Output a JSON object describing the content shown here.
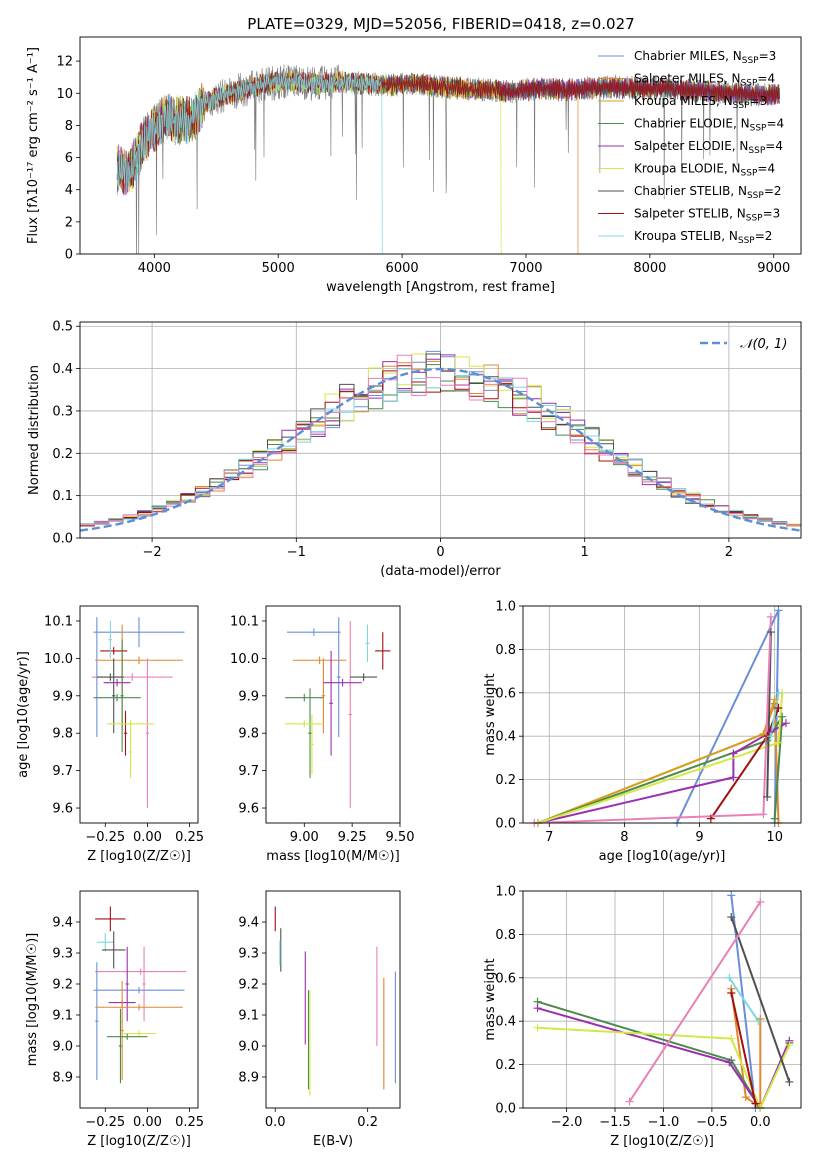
{
  "title": "PLATE=0329, MJD=52056, FIBERID=0418, z=0.027",
  "colors": {
    "chabrier_miles": "#6a8fd8",
    "salpeter_miles": "#e0882e",
    "kroupa_miles": "#d4a020",
    "chabrier_elodie": "#4b8a4b",
    "salpeter_elodie": "#9b2fb0",
    "kroupa_elodie": "#d4e84a",
    "chabrier_stelib": "#505050",
    "salpeter_stelib": "#a01010",
    "kroupa_stelib": "#7fd8e0",
    "pink": "#e880b8",
    "gray_spectrum": "#7a7a7a",
    "grid": "#b0b0b0",
    "gaussian": "#5b8fd6"
  },
  "chart_data": [
    {
      "type": "line",
      "name": "spectrum",
      "xlabel": "wavelength [Angstrom, rest frame]",
      "ylabel": "Flux [fλ10⁻¹⁷ erg cm⁻² s⁻¹ A⁻¹]",
      "xlim": [
        3400,
        9220
      ],
      "ylim": [
        0,
        13.5
      ],
      "xticks": [
        4000,
        5000,
        6000,
        7000,
        8000,
        9000
      ],
      "yticks": [
        0,
        2,
        4,
        6,
        8,
        10,
        12
      ],
      "legend_position": "top-right",
      "legend": [
        "Chabrier MILES, N_SSP=3",
        "Salpeter MILES, N_SSP=4",
        "Kroupa MILES, N_SSP=3",
        "Chabrier ELODIE, N_SSP=4",
        "Salpeter ELODIE, N_SSP=4",
        "Kroupa ELODIE, N_SSP=4",
        "Chabrier STELIB, N_SSP=2",
        "Salpeter STELIB, N_SSP=3",
        "Kroupa STELIB, N_SSP=2"
      ],
      "continuum_points": [
        [
          3700,
          5.3
        ],
        [
          3800,
          5.0
        ],
        [
          3900,
          6.8
        ],
        [
          4000,
          7.8
        ],
        [
          4100,
          8.5
        ],
        [
          4200,
          8.3
        ],
        [
          4300,
          8.4
        ],
        [
          4400,
          9.3
        ],
        [
          4500,
          9.7
        ],
        [
          4700,
          10.2
        ],
        [
          4900,
          10.6
        ],
        [
          5100,
          10.8
        ],
        [
          5300,
          10.6
        ],
        [
          5500,
          10.7
        ],
        [
          5700,
          10.6
        ],
        [
          5900,
          10.5
        ],
        [
          6100,
          10.6
        ],
        [
          6300,
          10.4
        ],
        [
          6500,
          10.3
        ],
        [
          6700,
          10.2
        ],
        [
          6900,
          10.1
        ],
        [
          7100,
          10.3
        ],
        [
          7300,
          10.2
        ],
        [
          7500,
          10.3
        ],
        [
          7700,
          10.4
        ],
        [
          7900,
          10.3
        ],
        [
          8100,
          10.3
        ],
        [
          8300,
          10.2
        ],
        [
          8500,
          10.1
        ],
        [
          8700,
          10.0
        ],
        [
          8900,
          9.9
        ],
        [
          9050,
          9.9
        ]
      ],
      "cutoffs": {
        "kroupa_elodie": 6800,
        "salpeter_miles": 7420,
        "kroupa_stelib": 5840
      }
    },
    {
      "type": "line",
      "name": "residual-distribution",
      "xlabel": "(data-model)/error",
      "ylabel": "Normed distribution",
      "xlim": [
        -2.5,
        2.5
      ],
      "ylim": [
        0,
        0.51
      ],
      "xticks": [
        -2,
        -1,
        0,
        1,
        2
      ],
      "yticks": [
        0.0,
        0.1,
        0.2,
        0.3,
        0.4,
        0.5
      ],
      "legend_position": "top-right",
      "legend": [
        "𝒩(0, 1)"
      ],
      "bin_width": 0.1
    },
    {
      "type": "scatter",
      "name": "age-vs-z",
      "xlabel": "Z [log10(Z/Z☉)]",
      "ylabel": "age  [log10(age/yr)]",
      "xlim": [
        -0.4,
        0.3
      ],
      "ylim": [
        9.56,
        10.14
      ],
      "xticks": [
        -0.25,
        0.0,
        0.25
      ],
      "yticks": [
        9.6,
        9.7,
        9.8,
        9.9,
        10.0,
        10.1
      ],
      "points": [
        {
          "c": "chabrier_miles",
          "x": -0.05,
          "xe": 0.27,
          "y": 10.07,
          "ye": 0.04
        },
        {
          "c": "chabrier_miles",
          "x": -0.3,
          "xe": 0.01,
          "y": 9.95,
          "ye": 0.16
        },
        {
          "c": "salpeter_miles",
          "x": -0.05,
          "xe": 0.26,
          "y": 9.995,
          "ye": 0.01
        },
        {
          "c": "salpeter_miles",
          "x": -0.15,
          "xe": 0.01,
          "y": 9.95,
          "ye": 0.14
        },
        {
          "c": "salpeter_stelib",
          "x": -0.2,
          "xe": 0.08,
          "y": 10.02,
          "ye": 0.01
        },
        {
          "c": "salpeter_stelib",
          "x": -0.13,
          "xe": 0.01,
          "y": 9.8,
          "ye": 0.06
        },
        {
          "c": "pink",
          "x": -0.09,
          "xe": 0.24,
          "y": 9.95,
          "ye": 0.01
        },
        {
          "c": "pink",
          "x": 0.0,
          "xe": 0.01,
          "y": 9.8,
          "ye": 0.2
        },
        {
          "c": "chabrier_stelib",
          "x": -0.22,
          "xe": 0.08,
          "y": 9.95,
          "ye": 0.01
        },
        {
          "c": "chabrier_stelib",
          "x": -0.2,
          "xe": 0.01,
          "y": 9.9,
          "ye": 0.1
        },
        {
          "c": "chabrier_elodie",
          "x": -0.18,
          "xe": 0.14,
          "y": 9.895,
          "ye": 0.01
        },
        {
          "c": "chabrier_elodie",
          "x": -0.15,
          "xe": 0.01,
          "y": 9.9,
          "ye": 0.15
        },
        {
          "c": "salpeter_elodie",
          "x": -0.18,
          "xe": 0.08,
          "y": 9.935,
          "ye": 0.01
        },
        {
          "c": "kroupa_elodie",
          "x": -0.1,
          "xe": 0.14,
          "y": 9.825,
          "ye": 0.01
        },
        {
          "c": "kroupa_elodie",
          "x": -0.1,
          "xe": 0.01,
          "y": 9.75,
          "ye": 0.07
        },
        {
          "c": "kroupa_stelib",
          "x": -0.22,
          "xe": 0.01,
          "y": 10.05,
          "ye": 0.05
        }
      ]
    },
    {
      "type": "scatter",
      "name": "age-vs-mass",
      "xlabel": "mass [log10(M/M☉)]",
      "ylabel": "",
      "xlim": [
        8.8,
        9.5
      ],
      "ylim": [
        9.56,
        10.14
      ],
      "xticks": [
        9.0,
        9.25,
        9.5
      ],
      "yticks": [
        9.6,
        9.7,
        9.8,
        9.9,
        10.0,
        10.1
      ],
      "points": [
        {
          "c": "chabrier_miles",
          "x": 9.05,
          "xe": 0.14,
          "y": 10.07,
          "ye": 0.01
        },
        {
          "c": "chabrier_miles",
          "x": 9.18,
          "xe": 0.01,
          "y": 9.95,
          "ye": 0.16
        },
        {
          "c": "salpeter_miles",
          "x": 9.08,
          "xe": 0.14,
          "y": 9.995,
          "ye": 0.01
        },
        {
          "c": "salpeter_miles",
          "x": 9.1,
          "xe": 0.01,
          "y": 9.9,
          "ye": 0.1
        },
        {
          "c": "salpeter_stelib",
          "x": 9.41,
          "xe": 0.04,
          "y": 10.02,
          "ye": 0.05
        },
        {
          "c": "pink",
          "x": 9.24,
          "xe": 0.01,
          "y": 9.85,
          "ye": 0.25
        },
        {
          "c": "chabrier_stelib",
          "x": 9.31,
          "xe": 0.07,
          "y": 9.95,
          "ye": 0.01
        },
        {
          "c": "chabrier_elodie",
          "x": 9.0,
          "xe": 0.1,
          "y": 9.895,
          "ye": 0.01
        },
        {
          "c": "chabrier_elodie",
          "x": 9.03,
          "xe": 0.01,
          "y": 9.8,
          "ye": 0.12
        },
        {
          "c": "salpeter_elodie",
          "x": 9.14,
          "xe": 0.01,
          "y": 9.88,
          "ye": 0.14
        },
        {
          "c": "salpeter_elodie",
          "x": 9.2,
          "xe": 0.1,
          "y": 9.935,
          "ye": 0.01
        },
        {
          "c": "kroupa_elodie",
          "x": 9.0,
          "xe": 0.1,
          "y": 9.825,
          "ye": 0.01
        },
        {
          "c": "kroupa_elodie",
          "x": 9.04,
          "xe": 0.01,
          "y": 9.77,
          "ye": 0.08
        },
        {
          "c": "kroupa_stelib",
          "x": 9.33,
          "xe": 0.01,
          "y": 10.04,
          "ye": 0.05
        }
      ]
    },
    {
      "type": "line",
      "name": "mass-weight-vs-age",
      "xlabel": "age  [log10(age/yr)]",
      "ylabel": "mass weight",
      "xlim": [
        6.65,
        10.35
      ],
      "ylim": [
        0,
        1
      ],
      "xticks": [
        7,
        8,
        9,
        10
      ],
      "yticks": [
        0.0,
        0.2,
        0.4,
        0.6,
        0.8,
        1.0
      ],
      "series": [
        {
          "c": "chabrier_miles",
          "points": [
            [
              8.7,
              0.0
            ],
            [
              10.05,
              0.98
            ],
            [
              10.0,
              0.0
            ]
          ]
        },
        {
          "c": "salpeter_miles",
          "points": [
            [
              6.85,
              0.0
            ],
            [
              9.85,
              0.41
            ],
            [
              10.0,
              0.55
            ],
            [
              10.05,
              0.0
            ]
          ]
        },
        {
          "c": "kroupa_miles",
          "points": [
            [
              6.85,
              0.0
            ],
            [
              9.85,
              0.41
            ],
            [
              10.0,
              0.57
            ]
          ]
        },
        {
          "c": "chabrier_elodie",
          "points": [
            [
              6.85,
              0.0
            ],
            [
              9.9,
              0.38
            ],
            [
              10.1,
              0.49
            ],
            [
              10.0,
              0.02
            ]
          ]
        },
        {
          "c": "salpeter_elodie",
          "points": [
            [
              6.85,
              0.0
            ],
            [
              9.45,
              0.21
            ],
            [
              9.45,
              0.32
            ],
            [
              9.95,
              0.42
            ],
            [
              10.15,
              0.46
            ]
          ]
        },
        {
          "c": "kroupa_elodie",
          "points": [
            [
              6.85,
              0.0
            ],
            [
              10.05,
              0.37
            ],
            [
              10.1,
              0.6
            ]
          ]
        },
        {
          "c": "chabrier_stelib",
          "points": [
            [
              9.9,
              0.12
            ],
            [
              9.95,
              0.88
            ]
          ]
        },
        {
          "c": "salpeter_stelib",
          "points": [
            [
              9.15,
              0.02
            ],
            [
              9.9,
              0.4
            ],
            [
              10.05,
              0.53
            ]
          ]
        },
        {
          "c": "kroupa_stelib",
          "points": [
            [
              9.95,
              0.4
            ],
            [
              10.05,
              0.6
            ]
          ]
        },
        {
          "c": "pink",
          "points": [
            [
              6.8,
              0.0
            ],
            [
              9.85,
              0.04
            ],
            [
              9.95,
              0.95
            ]
          ]
        }
      ]
    },
    {
      "type": "scatter",
      "name": "mass-vs-z",
      "xlabel": "Z [log10(Z/Z☉)]",
      "ylabel": "mass [log10(M/M☉)]",
      "xlim": [
        -0.4,
        0.3
      ],
      "ylim": [
        8.8,
        9.5
      ],
      "xticks": [
        -0.25,
        0.0,
        0.25
      ],
      "yticks": [
        8.9,
        9.0,
        9.1,
        9.2,
        9.3,
        9.4
      ],
      "points": [
        {
          "c": "salpeter_stelib",
          "x": -0.22,
          "xe": 0.09,
          "y": 9.41,
          "ye": 0.04
        },
        {
          "c": "kroupa_stelib",
          "x": -0.25,
          "xe": 0.05,
          "y": 9.335,
          "ye": 0.03
        },
        {
          "c": "chabrier_stelib",
          "x": -0.2,
          "xe": 0.07,
          "y": 9.31,
          "ye": 0.06
        },
        {
          "c": "pink",
          "x": -0.04,
          "xe": 0.27,
          "y": 9.24,
          "ye": 0.01
        },
        {
          "c": "pink",
          "x": -0.02,
          "xe": 0.01,
          "y": 9.2,
          "ye": 0.12
        },
        {
          "c": "chabrier_miles",
          "x": -0.05,
          "xe": 0.27,
          "y": 9.18,
          "ye": 0.01
        },
        {
          "c": "chabrier_miles",
          "x": -0.3,
          "xe": 0.01,
          "y": 9.08,
          "ye": 0.19
        },
        {
          "c": "salpeter_elodie",
          "x": -0.15,
          "xe": 0.08,
          "y": 9.14,
          "ye": 0.01
        },
        {
          "c": "salpeter_elodie",
          "x": -0.12,
          "xe": 0.01,
          "y": 9.2,
          "ye": 0.12
        },
        {
          "c": "salpeter_miles",
          "x": -0.05,
          "xe": 0.26,
          "y": 9.125,
          "ye": 0.01
        },
        {
          "c": "salpeter_miles",
          "x": -0.15,
          "xe": 0.01,
          "y": 9.05,
          "ye": 0.16
        },
        {
          "c": "kroupa_elodie",
          "x": -0.05,
          "xe": 0.1,
          "y": 9.04,
          "ye": 0.01
        },
        {
          "c": "chabrier_elodie",
          "x": -0.12,
          "xe": 0.12,
          "y": 9.03,
          "ye": 0.01
        },
        {
          "c": "chabrier_elodie",
          "x": -0.16,
          "xe": 0.01,
          "y": 9.0,
          "ye": 0.12
        }
      ]
    },
    {
      "type": "scatter",
      "name": "mass-vs-ebv",
      "xlabel": "E(B-V)",
      "ylabel": "",
      "xlim": [
        -0.02,
        0.27
      ],
      "ylim": [
        8.8,
        9.5
      ],
      "xticks": [
        0.0,
        0.2
      ],
      "yticks": [
        8.9,
        9.0,
        9.1,
        9.2,
        9.3,
        9.4
      ],
      "points": [
        {
          "c": "salpeter_stelib",
          "x": 0.0,
          "xe": 0.0,
          "y": 9.41,
          "ye": 0.04
        },
        {
          "c": "chabrier_stelib",
          "x": 0.012,
          "xe": 0.0,
          "y": 9.31,
          "ye": 0.07
        },
        {
          "c": "kroupa_stelib",
          "x": 0.01,
          "xe": 0.0,
          "y": 9.3,
          "ye": 0.04
        },
        {
          "c": "salpeter_elodie",
          "x": 0.065,
          "xe": 0.0,
          "y": 9.155,
          "ye": 0.15
        },
        {
          "c": "chabrier_elodie",
          "x": 0.072,
          "xe": 0.0,
          "y": 9.02,
          "ye": 0.16
        },
        {
          "c": "kroupa_elodie",
          "x": 0.075,
          "xe": 0.0,
          "y": 9.01,
          "ye": 0.17
        },
        {
          "c": "pink",
          "x": 0.22,
          "xe": 0.0,
          "y": 9.16,
          "ye": 0.16
        },
        {
          "c": "salpeter_miles",
          "x": 0.235,
          "xe": 0.0,
          "y": 9.04,
          "ye": 0.18
        },
        {
          "c": "chabrier_miles",
          "x": 0.26,
          "xe": 0.0,
          "y": 9.06,
          "ye": 0.18
        }
      ]
    },
    {
      "type": "line",
      "name": "mass-weight-vs-z",
      "xlabel": "Z [log10(Z/Z☉)]",
      "ylabel": "mass weight",
      "xlim": [
        -2.45,
        0.42
      ],
      "ylim": [
        0,
        1
      ],
      "xticks": [
        -2.0,
        -1.5,
        -1.0,
        -0.5,
        0.0
      ],
      "yticks": [
        0.0,
        0.2,
        0.4,
        0.6,
        0.8,
        1.0
      ],
      "series": [
        {
          "c": "chabrier_miles",
          "points": [
            [
              -0.3,
              0.98
            ],
            [
              -0.05,
              0.0
            ]
          ]
        },
        {
          "c": "salpeter_miles",
          "points": [
            [
              -0.3,
              0.55
            ],
            [
              -0.15,
              0.05
            ],
            [
              0.0,
              0.0
            ],
            [
              0.0,
              0.41
            ]
          ]
        },
        {
          "c": "chabrier_elodie",
          "points": [
            [
              -2.3,
              0.49
            ],
            [
              -0.3,
              0.22
            ],
            [
              0.0,
              0.0
            ],
            [
              0.3,
              0.3
            ]
          ]
        },
        {
          "c": "salpeter_elodie",
          "points": [
            [
              -2.3,
              0.46
            ],
            [
              -0.32,
              0.21
            ],
            [
              0.0,
              0.0
            ],
            [
              0.3,
              0.31
            ]
          ]
        },
        {
          "c": "kroupa_elodie",
          "points": [
            [
              -2.3,
              0.37
            ],
            [
              -0.3,
              0.32
            ],
            [
              0.0,
              0.0
            ],
            [
              0.3,
              0.29
            ]
          ]
        },
        {
          "c": "chabrier_stelib",
          "points": [
            [
              -0.3,
              0.88
            ],
            [
              0.3,
              0.12
            ]
          ]
        },
        {
          "c": "salpeter_stelib",
          "points": [
            [
              -0.3,
              0.53
            ],
            [
              -0.05,
              0.02
            ]
          ]
        },
        {
          "c": "kroupa_stelib",
          "points": [
            [
              -0.32,
              0.6
            ],
            [
              -0.02,
              0.4
            ]
          ]
        },
        {
          "c": "pink",
          "points": [
            [
              -1.35,
              0.03
            ],
            [
              0.0,
              0.95
            ]
          ]
        }
      ]
    }
  ]
}
